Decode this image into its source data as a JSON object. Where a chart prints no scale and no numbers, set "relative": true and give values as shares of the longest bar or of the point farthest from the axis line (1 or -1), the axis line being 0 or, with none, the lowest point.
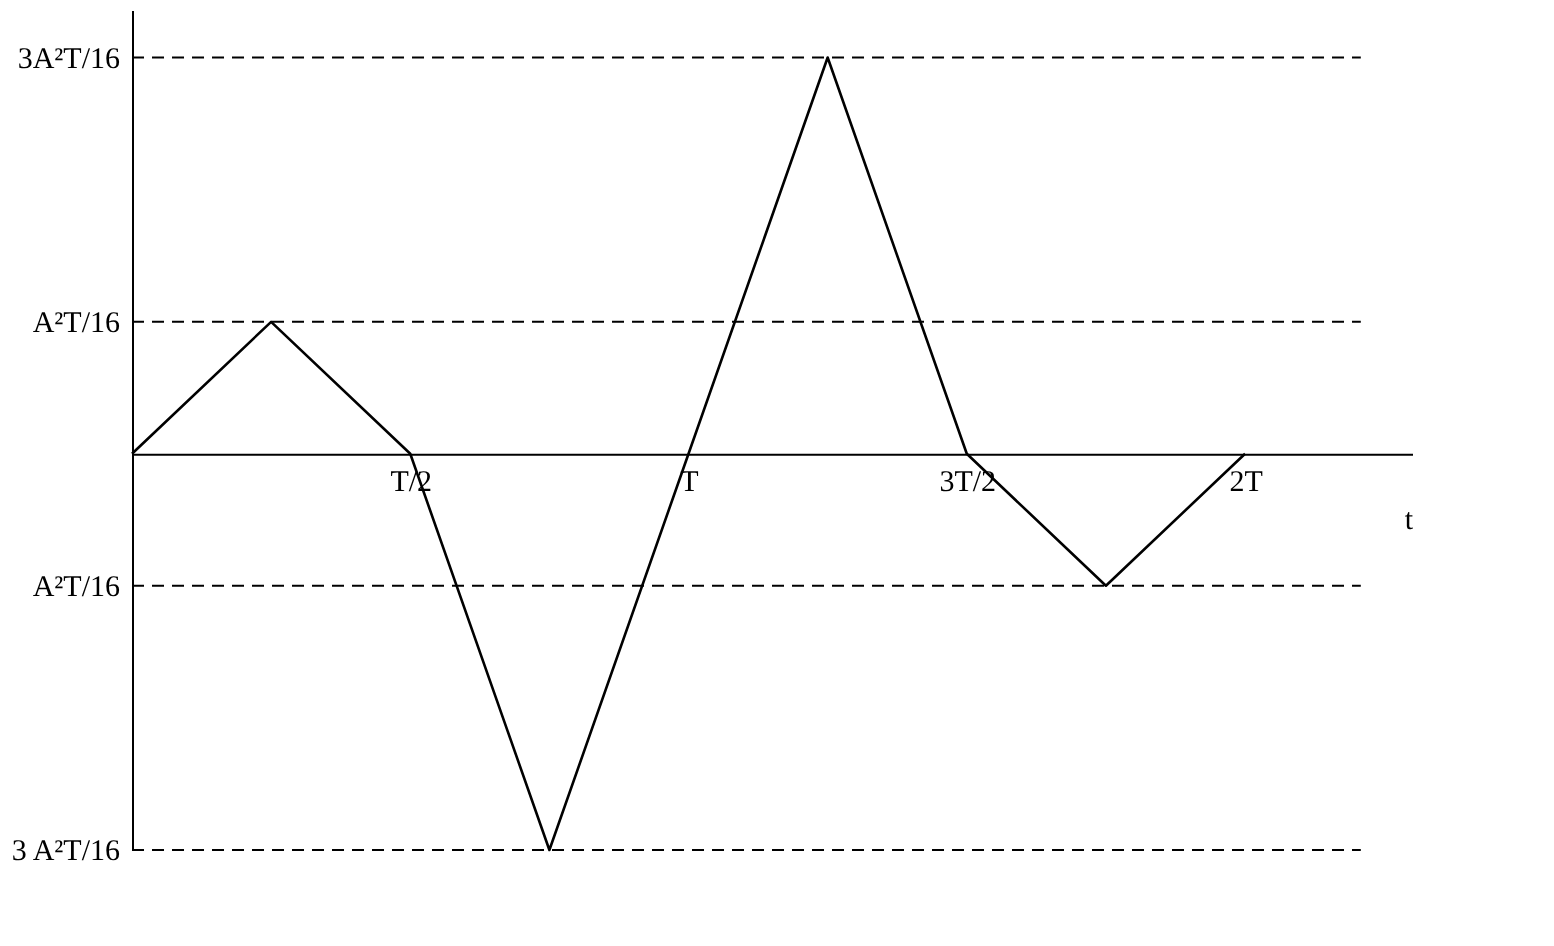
{
  "chart_data": {
    "type": "line",
    "xlabel": "t",
    "relative": true,
    "categories": [
      null,
      null,
      "T/2",
      null,
      "T",
      null,
      "3T/2",
      null,
      "2T"
    ],
    "series": [
      {
        "color": "#000000",
        "values": [
          0,
          0.333,
          0,
          -1,
          0,
          1,
          0,
          -0.333,
          0
        ]
      }
    ],
    "ref_lines": [
      {
        "axis": "y",
        "value": 1,
        "label": "3A²T/16",
        "color": "#000000",
        "line_style": "dashed"
      },
      {
        "axis": "y",
        "value": 0.333,
        "label": "A²T/16",
        "color": "#000000",
        "line_style": "dashed"
      },
      {
        "axis": "y",
        "value": -0.333,
        "label": "A²T/16",
        "color": "#000000",
        "line_style": "dashed"
      },
      {
        "axis": "y",
        "value": -1,
        "label": "3 A²T/16",
        "color": "#000000",
        "line_style": "dashed"
      }
    ],
    "grid": false,
    "marker": "none",
    "line_style": "solid"
  }
}
